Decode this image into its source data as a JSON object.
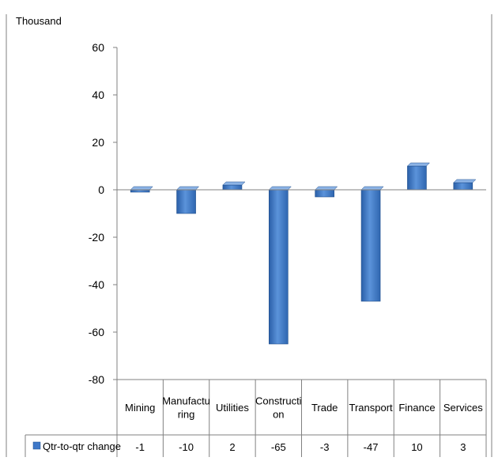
{
  "chart_data": {
    "type": "bar",
    "title": "",
    "ylabel": "Thousand",
    "xlabel": "",
    "ylim": [
      -80,
      60
    ],
    "yticks": [
      60,
      40,
      20,
      0,
      -20,
      -40,
      -60,
      -80
    ],
    "categories": [
      {
        "label_lines": [
          "Mining"
        ]
      },
      {
        "label_lines": [
          "Manufactu",
          "ring"
        ]
      },
      {
        "label_lines": [
          "Utilities"
        ]
      },
      {
        "label_lines": [
          "Constructi",
          "on"
        ]
      },
      {
        "label_lines": [
          "Trade"
        ]
      },
      {
        "label_lines": [
          "Transport"
        ]
      },
      {
        "label_lines": [
          "Finance"
        ]
      },
      {
        "label_lines": [
          "Services"
        ]
      }
    ],
    "series": [
      {
        "name": "Qtr-to-qtr change",
        "values": [
          -1,
          -10,
          2,
          -65,
          -3,
          -47,
          10,
          3
        ],
        "color": "#3F78C8"
      }
    ],
    "data_table": true,
    "legend": "in-data-table"
  }
}
